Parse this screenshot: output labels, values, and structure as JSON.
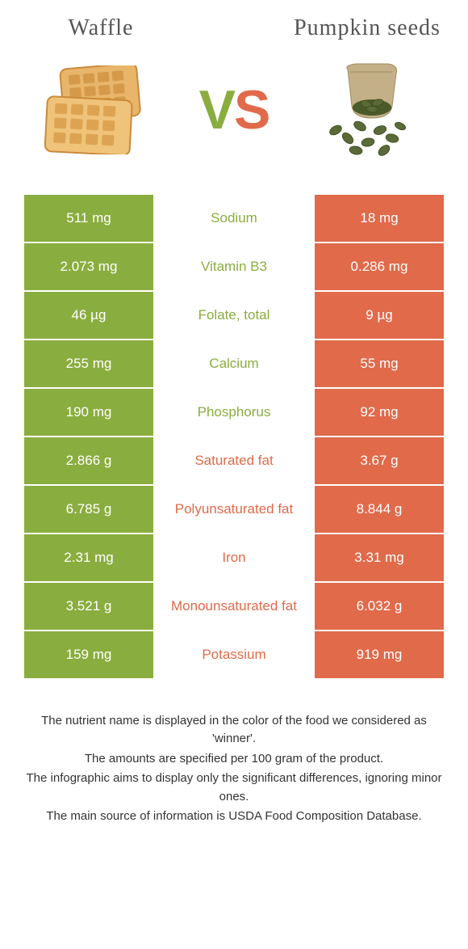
{
  "header": {
    "left_title": "Waffle",
    "right_title": "Pumpkin seeds",
    "vs_v": "V",
    "vs_s": "S"
  },
  "colors": {
    "green": "#8aad3f",
    "orange": "#e06a4a",
    "mid_bg": "#ffffff",
    "text_dark": "#333333"
  },
  "table": {
    "rows": [
      {
        "left": "511 mg",
        "mid": "Sodium",
        "right": "18 mg",
        "winner": "left"
      },
      {
        "left": "2.073 mg",
        "mid": "Vitamin B3",
        "right": "0.286 mg",
        "winner": "left"
      },
      {
        "left": "46 µg",
        "mid": "Folate, total",
        "right": "9 µg",
        "winner": "left"
      },
      {
        "left": "255 mg",
        "mid": "Calcium",
        "right": "55 mg",
        "winner": "left"
      },
      {
        "left": "190 mg",
        "mid": "Phosphorus",
        "right": "92 mg",
        "winner": "left"
      },
      {
        "left": "2.866 g",
        "mid": "Saturated fat",
        "right": "3.67 g",
        "winner": "right"
      },
      {
        "left": "6.785 g",
        "mid": "Polyunsaturated fat",
        "right": "8.844 g",
        "winner": "right"
      },
      {
        "left": "2.31 mg",
        "mid": "Iron",
        "right": "3.31 mg",
        "winner": "right"
      },
      {
        "left": "3.521 g",
        "mid": "Monounsaturated fat",
        "right": "6.032 g",
        "winner": "right"
      },
      {
        "left": "159 mg",
        "mid": "Potassium",
        "right": "919 mg",
        "winner": "right"
      }
    ]
  },
  "footer": {
    "line1": "The nutrient name is displayed in the color of the food we considered as 'winner'.",
    "line2": "The amounts are specified per 100 gram of the product.",
    "line3": "The infographic aims to display only the significant differences, ignoring minor ones.",
    "line4": "The main source of information is USDA Food Composition Database."
  }
}
